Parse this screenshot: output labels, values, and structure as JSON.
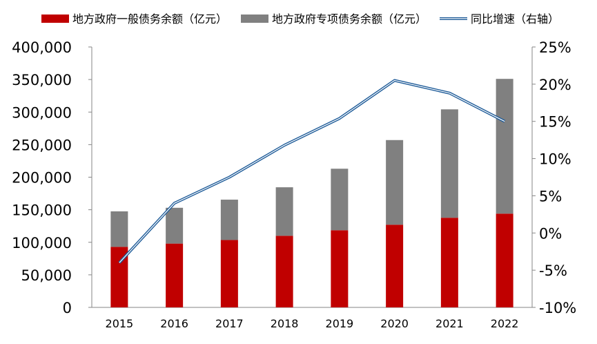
{
  "chart_data": {
    "type": "bar",
    "categories": [
      "2015",
      "2016",
      "2017",
      "2018",
      "2019",
      "2020",
      "2021",
      "2022"
    ],
    "series": [
      {
        "name": "地方政府一般债务余额（亿元）",
        "type": "bar",
        "stack": "balance",
        "axis": "left",
        "color": "#c00000",
        "values": [
          93000,
          98000,
          103500,
          110000,
          118500,
          127000,
          137700,
          144000
        ]
      },
      {
        "name": "地方政府专项债务余额（亿元）",
        "type": "bar",
        "stack": "balance",
        "axis": "left",
        "color": "#808080",
        "values": [
          54500,
          55000,
          62000,
          74500,
          94500,
          130000,
          166500,
          207000
        ]
      },
      {
        "name": "同比增速（右轴）",
        "type": "line",
        "axis": "right",
        "color": "#1f5c99",
        "values": [
          -4.0,
          4.0,
          7.5,
          11.8,
          15.4,
          20.5,
          18.8,
          15.0
        ]
      }
    ],
    "left_axis": {
      "ylim": [
        0,
        400000
      ],
      "ticks": [
        0,
        50000,
        100000,
        150000,
        200000,
        250000,
        300000,
        350000,
        400000
      ],
      "tick_labels": [
        "0",
        "50,000",
        "100,000",
        "150,000",
        "200,000",
        "250,000",
        "300,000",
        "350,000",
        "400,000"
      ]
    },
    "right_axis": {
      "ylim": [
        -10,
        25
      ],
      "ticks": [
        -10,
        -5,
        0,
        5,
        10,
        15,
        20,
        25
      ],
      "tick_labels": [
        "-10%",
        "-5%",
        "0%",
        "5%",
        "10%",
        "15%",
        "20%",
        "25%"
      ]
    },
    "grid": false,
    "legend_position": "top"
  }
}
